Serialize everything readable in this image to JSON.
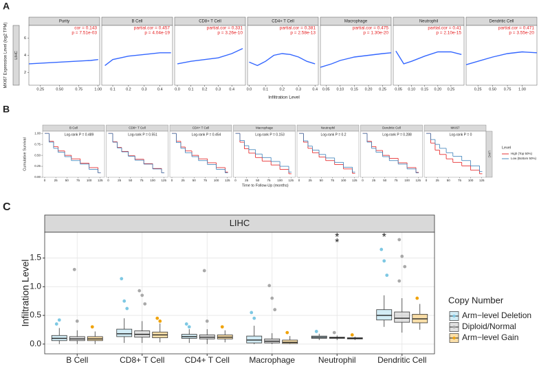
{
  "chart_data": [
    {
      "type": "scatter",
      "panel_label": "A",
      "ylabel": "MKI67 Expression Level (log2 TPM)",
      "row_label": "LIHC",
      "xlabel": "Infiltration Level",
      "ylim": [
        0.5,
        7.5
      ],
      "yticks": [
        2,
        4,
        6
      ],
      "trend_color": "#3366ff",
      "facets": [
        {
          "title": "Purity",
          "xlim": [
            0.1,
            1.02
          ],
          "xticks": [
            0.25,
            {
              "value": 0.5,
              "label": "0.50"
            },
            0.75,
            {
              "value": 1,
              "label": "1.00"
            }
          ],
          "annotation": [
            "cor = 0.143",
            "p = 7.51e-03"
          ],
          "trend": {
            "x": [
              0.1,
              0.3,
              0.5,
              0.7,
              0.9,
              1.0
            ],
            "y": [
              3.0,
              3.1,
              3.2,
              3.3,
              3.4,
              3.5
            ]
          }
        },
        {
          "title": "B Cell",
          "xlim": [
            0.03,
            0.48
          ],
          "xticks": [
            0.1,
            0.2,
            0.3,
            0.4
          ],
          "annotation": [
            "partial.cor = 0.457",
            "p = 4.04e-19"
          ],
          "trend": {
            "x": [
              0.05,
              0.1,
              0.15,
              0.2,
              0.3,
              0.4,
              0.47
            ],
            "y": [
              2.8,
              3.5,
              3.7,
              3.9,
              4.1,
              4.3,
              4.3
            ]
          }
        },
        {
          "title": "CD8+ T Cell",
          "xlim": [
            -0.02,
            0.5
          ],
          "xticks": [
            {
              "value": 0,
              "label": "0.0"
            },
            0.1,
            0.2,
            0.3,
            0.4
          ],
          "annotation": [
            "partial.cor = 0.331",
            "p = 3.26e-10"
          ],
          "trend": {
            "x": [
              0,
              0.1,
              0.2,
              0.3,
              0.4,
              0.48
            ],
            "y": [
              3.0,
              3.3,
              3.5,
              3.7,
              4.2,
              4.8
            ]
          }
        },
        {
          "title": "CD4+ T Cell",
          "xlim": [
            -0.01,
            0.42
          ],
          "xticks": [
            {
              "value": 0,
              "label": "0.0"
            },
            0.1,
            0.2,
            0.3,
            0.4
          ],
          "annotation": [
            "partial.cor = 0.381",
            "p = 2.58e-13"
          ],
          "trend": {
            "x": [
              0,
              0.05,
              0.1,
              0.15,
              0.2,
              0.25,
              0.3,
              0.35,
              0.4
            ],
            "y": [
              3.2,
              2.8,
              3.3,
              4.0,
              4.2,
              4.1,
              3.8,
              3.3,
              3.0
            ]
          }
        },
        {
          "title": "Macrophage",
          "xlim": [
            0.03,
            0.28
          ],
          "xticks": [
            0.05,
            {
              "value": 0.1,
              "label": "0.10"
            },
            0.15,
            {
              "value": 0.2,
              "label": "0.20"
            },
            0.25
          ],
          "annotation": [
            "partial.cor = 0.475",
            "p = 1.30e-20"
          ],
          "trend": {
            "x": [
              0.03,
              0.07,
              0.1,
              0.15,
              0.2,
              0.25,
              0.28
            ],
            "y": [
              2.6,
              3.0,
              3.4,
              3.8,
              4.0,
              4.2,
              4.3
            ]
          }
        },
        {
          "title": "Neutrophil",
          "xlim": [
            0.03,
            0.3
          ],
          "xticks": [
            0.05,
            {
              "value": 0.1,
              "label": "0.10"
            },
            0.15,
            {
              "value": 0.2,
              "label": "0.20"
            },
            0.25
          ],
          "annotation": [
            "partial.cor = 0.41",
            "p = 2.10e-15"
          ],
          "trend": {
            "x": [
              0.04,
              0.07,
              0.1,
              0.15,
              0.2,
              0.25,
              0.29
            ],
            "y": [
              4.5,
              3.0,
              3.3,
              3.9,
              4.4,
              4.4,
              4.1
            ]
          }
        },
        {
          "title": "Dendritic Cell",
          "xlim": [
            0.05,
            1.25
          ],
          "xticks": [
            0.25,
            {
              "value": 0.5,
              "label": "0.50"
            },
            0.75,
            {
              "value": 1,
              "label": "1.00"
            }
          ],
          "annotation": [
            "partial.cor = 0.471",
            "p = 3.55e-20"
          ],
          "trend": {
            "x": [
              0.05,
              0.25,
              0.5,
              0.75,
              1.0,
              1.25
            ],
            "y": [
              2.9,
              3.3,
              3.8,
              4.2,
              4.4,
              4.3
            ]
          }
        }
      ]
    },
    {
      "type": "step",
      "panel_label": "B",
      "ylabel": "Cumulative Survival",
      "xlabel": "Time to Follow-Up (months)",
      "row_label": "LIHC",
      "ylim": [
        0,
        1.05
      ],
      "yticks": [
        {
          "value": 0,
          "label": "0.00"
        },
        0.25,
        {
          "value": 0.5,
          "label": "0.50"
        },
        0.75,
        {
          "value": 1,
          "label": "1.00"
        }
      ],
      "xlim": [
        0,
        130
      ],
      "xticks": [
        0,
        25,
        50,
        75,
        100,
        125
      ],
      "legend_title": "Level",
      "series": [
        {
          "name": "High (Top 50%)",
          "color": "#e41a1c"
        },
        {
          "name": "Low (Bottom 50%)",
          "color": "#377eb8"
        }
      ],
      "x": [
        0,
        10,
        20,
        30,
        45,
        60,
        80,
        100,
        120
      ],
      "facets": [
        {
          "title": "B Cell",
          "annotation": "Log-rank P = 0.489",
          "values": [
            [
              1,
              0.82,
              0.7,
              0.6,
              0.5,
              0.42,
              0.32,
              0.22,
              0.1
            ],
            [
              1,
              0.8,
              0.66,
              0.57,
              0.47,
              0.38,
              0.3,
              0.18,
              0.1
            ]
          ]
        },
        {
          "title": "CD8+ T Cell",
          "annotation": "Log-rank P = 0.551",
          "values": [
            [
              1,
              0.81,
              0.68,
              0.59,
              0.49,
              0.41,
              0.31,
              0.2,
              0.1
            ],
            [
              1,
              0.8,
              0.67,
              0.58,
              0.48,
              0.39,
              0.3,
              0.19,
              0.1
            ]
          ]
        },
        {
          "title": "CD4+ T Cell",
          "annotation": "Log-rank P = 0.454",
          "values": [
            [
              1,
              0.82,
              0.69,
              0.6,
              0.5,
              0.42,
              0.33,
              0.22,
              0.12
            ],
            [
              1,
              0.79,
              0.66,
              0.56,
              0.47,
              0.38,
              0.29,
              0.18,
              0.1
            ]
          ]
        },
        {
          "title": "Macrophage",
          "annotation": "Log-rank P = 0.153",
          "values": [
            [
              1,
              0.8,
              0.65,
              0.55,
              0.45,
              0.37,
              0.28,
              0.18,
              0.08
            ],
            [
              1,
              0.84,
              0.72,
              0.63,
              0.53,
              0.45,
              0.36,
              0.25,
              0.12
            ]
          ]
        },
        {
          "title": "Neutrophil",
          "annotation": "Log-rank P = 0.2",
          "values": [
            [
              1,
              0.8,
              0.66,
              0.56,
              0.46,
              0.38,
              0.29,
              0.19,
              0.09
            ],
            [
              1,
              0.83,
              0.71,
              0.62,
              0.52,
              0.44,
              0.34,
              0.23,
              0.12
            ]
          ]
        },
        {
          "title": "Dendritic Cell",
          "annotation": "Log-rank P = 0.288",
          "values": [
            [
              1,
              0.82,
              0.7,
              0.61,
              0.5,
              0.43,
              0.33,
              0.22,
              0.11
            ],
            [
              1,
              0.8,
              0.66,
              0.57,
              0.47,
              0.38,
              0.3,
              0.19,
              0.1
            ]
          ]
        },
        {
          "title": "MKI67",
          "annotation": "Log-rank P = 0",
          "values": [
            [
              1,
              0.78,
              0.62,
              0.52,
              0.42,
              0.34,
              0.26,
              0.16,
              0.08
            ],
            [
              1,
              0.86,
              0.75,
              0.66,
              0.56,
              0.48,
              0.38,
              0.26,
              0.13
            ]
          ]
        }
      ]
    },
    {
      "type": "box",
      "panel_label": "C",
      "strip": "LIHC",
      "ylabel": "Infiltration Level",
      "legend_title": "Copy Number",
      "ylim": [
        -0.17,
        1.95
      ],
      "yticks": [
        {
          "value": 0,
          "label": "0.0"
        },
        0.5,
        {
          "value": 1,
          "label": "1.0"
        },
        1.5
      ],
      "grid": true,
      "categories": [
        "B Cell",
        "CD8+ T Cell",
        "CD4+ T Cell",
        "Macrophage",
        "Neutrophil",
        "Dendritic Cell"
      ],
      "series": [
        {
          "name": "Arm−level Deletion",
          "color": "#7ec8e3",
          "values": [
            [
              0.0,
              0.06,
              0.1,
              0.15,
              0.28
            ],
            [
              0.02,
              0.13,
              0.18,
              0.26,
              0.45
            ],
            [
              0.02,
              0.1,
              0.13,
              0.17,
              0.26
            ],
            [
              0.0,
              0.02,
              0.07,
              0.14,
              0.32
            ],
            [
              0.07,
              0.1,
              0.12,
              0.14,
              0.18
            ],
            [
              0.3,
              0.42,
              0.5,
              0.6,
              0.85
            ]
          ],
          "outliers": [
            [
              0.35,
              0.42
            ],
            [
              1.14,
              0.75,
              0.62
            ],
            [
              0.35,
              0.3
            ],
            [
              0.55,
              0.45
            ],
            [
              0.22
            ],
            [
              1.65,
              1.45,
              1.2
            ]
          ]
        },
        {
          "name": "Diploid/Normal",
          "color": "#a9a9a9",
          "values": [
            [
              0.0,
              0.06,
              0.09,
              0.13,
              0.24
            ],
            [
              0.02,
              0.12,
              0.17,
              0.23,
              0.4
            ],
            [
              0.0,
              0.09,
              0.12,
              0.16,
              0.26
            ],
            [
              0.0,
              0.02,
              0.05,
              0.09,
              0.19
            ],
            [
              0.07,
              0.1,
              0.11,
              0.12,
              0.15
            ],
            [
              0.2,
              0.38,
              0.45,
              0.56,
              0.8
            ]
          ],
          "outliers": [
            [
              1.3,
              0.4
            ],
            [
              0.93,
              0.85,
              0.7
            ],
            [
              1.28,
              0.4
            ],
            [
              1.02,
              0.8,
              0.6
            ],
            [
              0.2
            ],
            [
              1.82,
              1.53,
              1.35,
              1.1
            ]
          ]
        },
        {
          "name": "Arm−level Gain",
          "color": "#f0a30a",
          "values": [
            [
              0.0,
              0.06,
              0.09,
              0.13,
              0.22
            ],
            [
              0.03,
              0.11,
              0.16,
              0.21,
              0.36
            ],
            [
              0.03,
              0.09,
              0.12,
              0.16,
              0.24
            ],
            [
              0.0,
              0.01,
              0.03,
              0.07,
              0.14
            ],
            [
              0.07,
              0.09,
              0.1,
              0.11,
              0.13
            ],
            [
              0.25,
              0.37,
              0.44,
              0.52,
              0.7
            ]
          ],
          "outliers": [
            [
              0.3
            ],
            [
              0.45,
              0.4
            ],
            [
              0.3
            ],
            [
              0.2
            ],
            [
              0.16
            ],
            [
              0.8
            ]
          ]
        }
      ],
      "annotations": [
        {
          "category": "Neutrophil",
          "label": "**"
        },
        {
          "category": "Dendritic Cell",
          "label": "*"
        }
      ]
    }
  ]
}
